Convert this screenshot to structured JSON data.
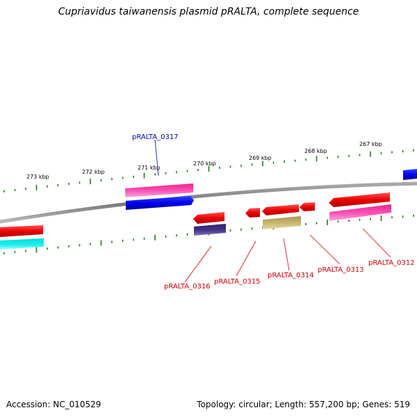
{
  "title": "Cupriavidus taiwanensis plasmid pRALTA, complete sequence",
  "footer": {
    "accession": "Accession: NC_010529",
    "summary": "Topology: circular; Length: 557,200 bp; Genes: 519"
  },
  "scale_labels": [
    "273 kbp",
    "272 kbp",
    "271 kbp",
    "270 kbp",
    "269 kbp",
    "268 kbp",
    "267 kbp"
  ],
  "gene_labels": {
    "upper": [
      "pRALTA_0317"
    ],
    "lower": [
      "pRALTA_0316",
      "pRALTA_0315",
      "pRALTA_0314",
      "pRALTA_0313",
      "pRALTA_0312"
    ]
  },
  "colors": {
    "upper_label": "#0000aa",
    "lower_label": "#cc0000",
    "backbone": "#888888",
    "ticks": "#1a7a1a",
    "cds_red": "#ee0000",
    "cds_pink": "#ff33aa",
    "cds_blue": "#0000ee",
    "cds_cyan": "#00dddd",
    "cds_navy": "#443388",
    "cds_olive": "#c8b870"
  }
}
